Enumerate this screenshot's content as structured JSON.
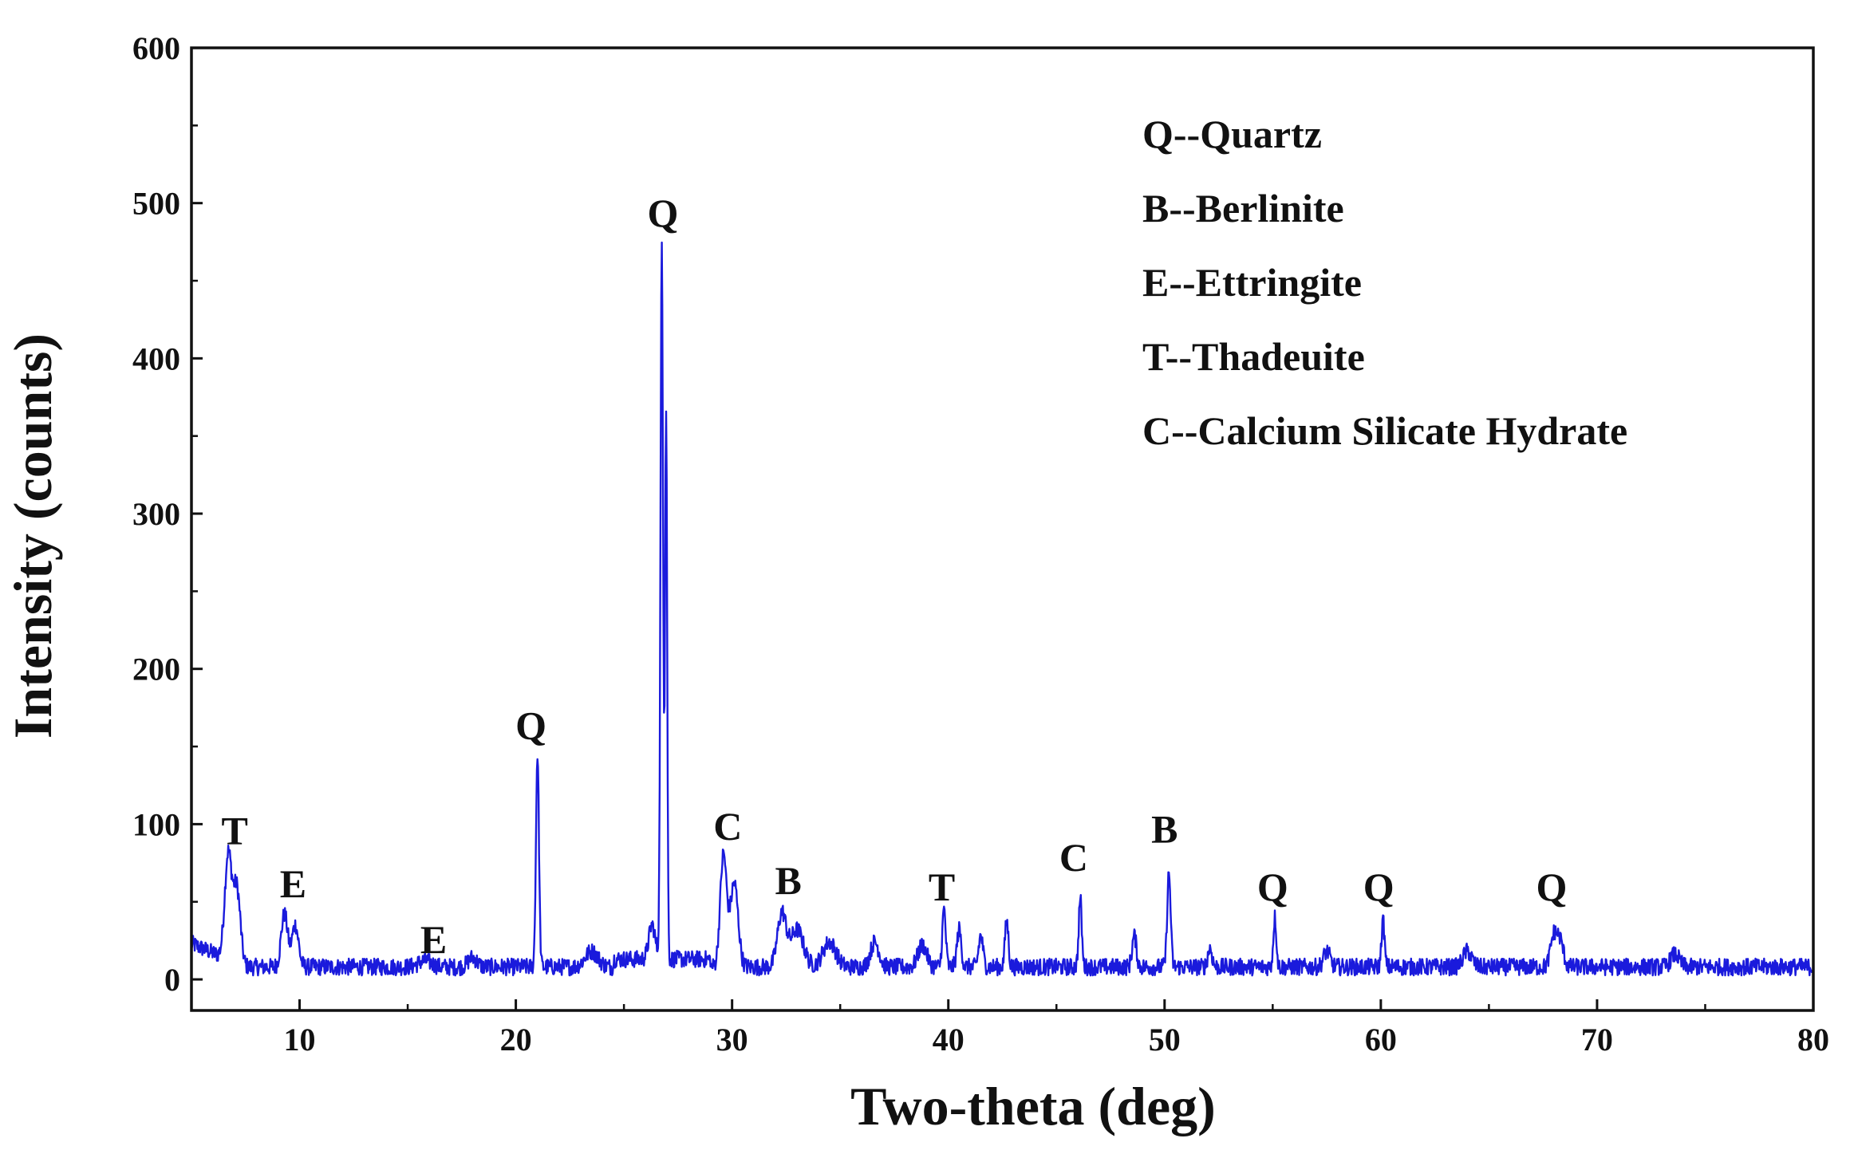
{
  "chart_data": {
    "type": "line",
    "title": "",
    "xlabel": "Two-theta (deg)",
    "ylabel": "Intensity (counts)",
    "xlim": [
      5,
      80
    ],
    "ylim": [
      -20,
      600
    ],
    "xticks": [
      10,
      20,
      30,
      40,
      50,
      60,
      70,
      80
    ],
    "yticks": [
      0,
      100,
      200,
      300,
      400,
      500,
      600
    ],
    "grid": false,
    "legend_position": "top-right",
    "line_color": "#1a1adc",
    "baseline": 8,
    "peaks": [
      {
        "x": 6.7,
        "y": 76,
        "w": 0.16
      },
      {
        "x": 7.1,
        "y": 56,
        "w": 0.16
      },
      {
        "x": 9.3,
        "y": 42,
        "w": 0.15
      },
      {
        "x": 9.8,
        "y": 35,
        "w": 0.15
      },
      {
        "x": 15.8,
        "y": 12,
        "w": 0.3
      },
      {
        "x": 18.0,
        "y": 14,
        "w": 0.2
      },
      {
        "x": 21.0,
        "y": 145,
        "w": 0.07
      },
      {
        "x": 23.5,
        "y": 18,
        "w": 0.3
      },
      {
        "x": 26.3,
        "y": 30,
        "w": 0.15
      },
      {
        "x": 26.75,
        "y": 468,
        "w": 0.06
      },
      {
        "x": 26.95,
        "y": 360,
        "w": 0.05
      },
      {
        "x": 29.6,
        "y": 80,
        "w": 0.15
      },
      {
        "x": 30.1,
        "y": 62,
        "w": 0.18
      },
      {
        "x": 32.3,
        "y": 42,
        "w": 0.2
      },
      {
        "x": 33.0,
        "y": 32,
        "w": 0.3
      },
      {
        "x": 34.5,
        "y": 24,
        "w": 0.3
      },
      {
        "x": 36.6,
        "y": 24,
        "w": 0.2
      },
      {
        "x": 38.8,
        "y": 22,
        "w": 0.2
      },
      {
        "x": 39.8,
        "y": 45,
        "w": 0.08
      },
      {
        "x": 40.5,
        "y": 32,
        "w": 0.1
      },
      {
        "x": 41.5,
        "y": 28,
        "w": 0.1
      },
      {
        "x": 42.7,
        "y": 38,
        "w": 0.08
      },
      {
        "x": 46.1,
        "y": 52,
        "w": 0.07
      },
      {
        "x": 48.6,
        "y": 28,
        "w": 0.1
      },
      {
        "x": 50.2,
        "y": 68,
        "w": 0.08
      },
      {
        "x": 52.1,
        "y": 20,
        "w": 0.1
      },
      {
        "x": 55.1,
        "y": 40,
        "w": 0.07
      },
      {
        "x": 57.5,
        "y": 18,
        "w": 0.15
      },
      {
        "x": 60.1,
        "y": 38,
        "w": 0.07
      },
      {
        "x": 64.0,
        "y": 18,
        "w": 0.2
      },
      {
        "x": 68.0,
        "y": 28,
        "w": 0.15
      },
      {
        "x": 68.3,
        "y": 24,
        "w": 0.15
      },
      {
        "x": 73.6,
        "y": 16,
        "w": 0.2
      }
    ],
    "annotations": [
      {
        "text": "T",
        "x": 7.0,
        "y": 87
      },
      {
        "text": "E",
        "x": 9.7,
        "y": 53
      },
      {
        "text": "E",
        "x": 16.2,
        "y": 17
      },
      {
        "text": "Q",
        "x": 20.7,
        "y": 155
      },
      {
        "text": "Q",
        "x": 26.8,
        "y": 485
      },
      {
        "text": "C",
        "x": 29.8,
        "y": 90
      },
      {
        "text": "B",
        "x": 32.6,
        "y": 55
      },
      {
        "text": "T",
        "x": 39.7,
        "y": 51
      },
      {
        "text": "C",
        "x": 45.8,
        "y": 70
      },
      {
        "text": "B",
        "x": 50.0,
        "y": 88
      },
      {
        "text": "Q",
        "x": 55.0,
        "y": 51
      },
      {
        "text": "Q",
        "x": 59.9,
        "y": 51
      },
      {
        "text": "Q",
        "x": 67.9,
        "y": 51
      }
    ],
    "legend": [
      "Q--Quartz",
      "B--Berlinite",
      "E--Ettringite",
      "T--Thadeuite",
      "C--Calcium Silicate Hydrate"
    ]
  }
}
